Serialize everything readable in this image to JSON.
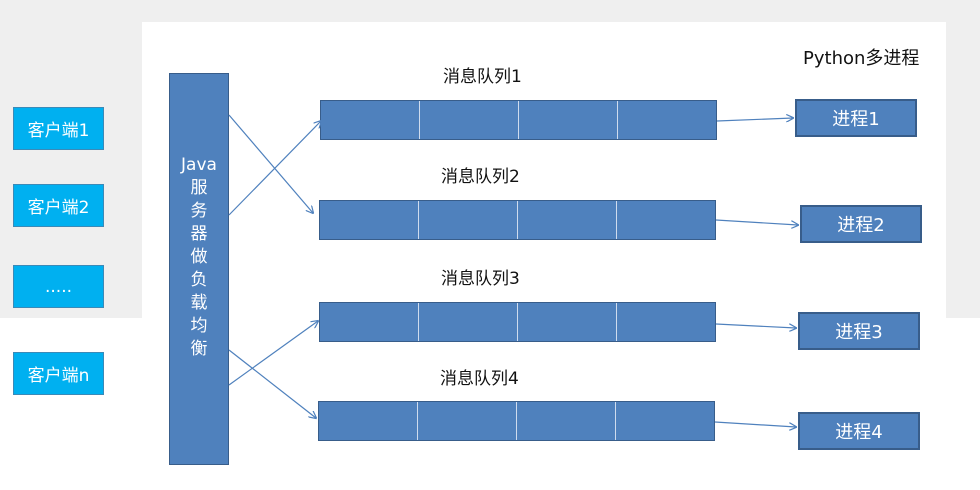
{
  "clients": [
    "客户端1",
    "客户端2",
    ".....",
    "客户端n"
  ],
  "load_balancer": {
    "title": "Java",
    "chars": [
      "服",
      "务",
      "器",
      "做",
      "负",
      "载",
      "均",
      "衡"
    ]
  },
  "queues": [
    "消息队列1",
    "消息队列2",
    "消息队列3",
    "消息队列4"
  ],
  "processes": [
    "进程1",
    "进程2",
    "进程3",
    "进程4"
  ],
  "python_label": "Python多进程",
  "colors": {
    "client_fill": "#00b0f0",
    "box_fill": "#4f81bd",
    "box_border": "#385d8a",
    "arrow": "#4f81bd"
  }
}
